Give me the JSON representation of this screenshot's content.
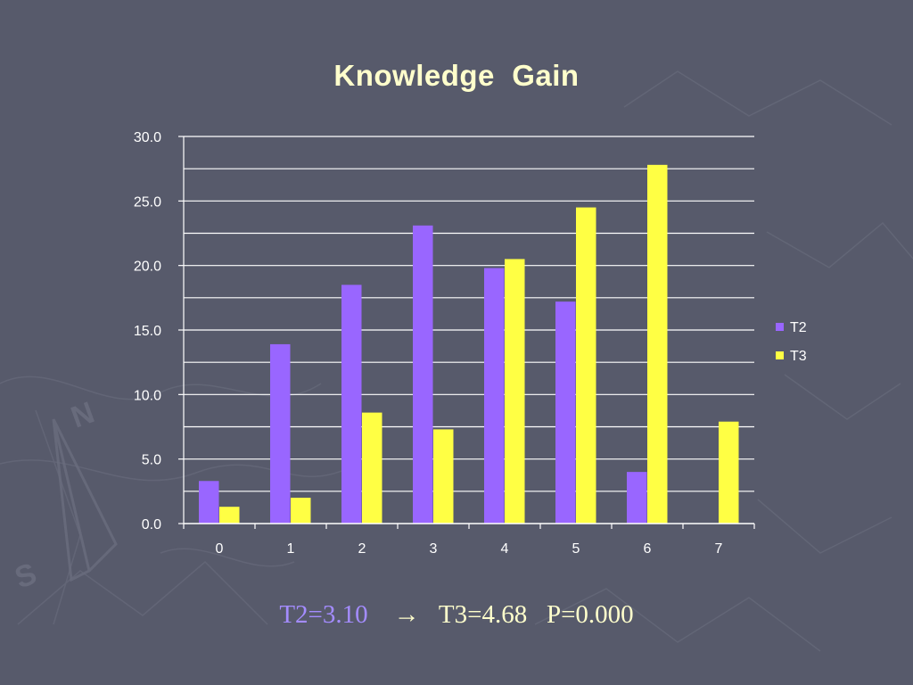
{
  "chart_data": {
    "type": "bar",
    "title": "Knowledge  Gain",
    "xlabel": "",
    "ylabel": "",
    "categories": [
      "0",
      "1",
      "2",
      "3",
      "4",
      "5",
      "6",
      "7"
    ],
    "series": [
      {
        "name": "T2",
        "color": "#9966ff",
        "values": [
          3.3,
          13.9,
          18.5,
          23.1,
          19.8,
          17.2,
          4.0,
          0.0
        ]
      },
      {
        "name": "T3",
        "color": "#ffff44",
        "values": [
          1.3,
          2.0,
          8.6,
          7.3,
          20.5,
          24.5,
          27.8,
          7.9
        ]
      }
    ],
    "ylim": [
      0,
      30
    ],
    "y_ticks": [
      "0.0",
      "5.0",
      "10.0",
      "15.0",
      "20.0",
      "25.0",
      "30.0"
    ],
    "grid": true,
    "legend": "right",
    "colors": {
      "axis": "#ffffff",
      "text": "#ffffff",
      "title": "#ffffcc",
      "background": "#575a6b"
    }
  },
  "summary": {
    "t2_text": "T2=3.10",
    "arrow_text": "→",
    "t3_text": "T3=4.68",
    "p_text": "P=0.000"
  }
}
